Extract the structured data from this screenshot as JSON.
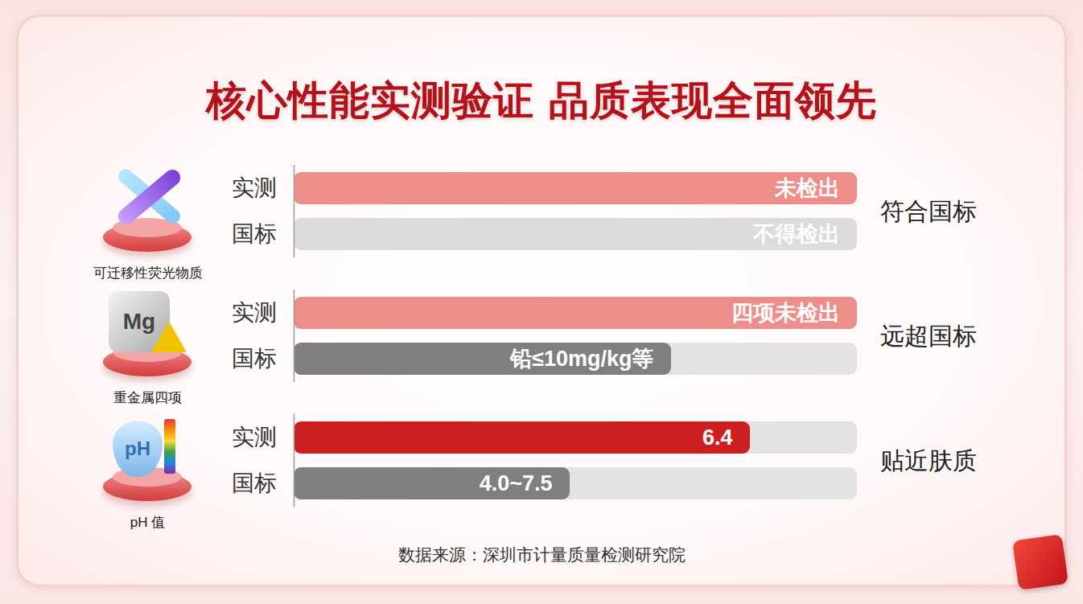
{
  "chart_data": {
    "type": "bar",
    "orientation": "horizontal",
    "title": "核心性能实测验证 品质表现全面领先",
    "source": "数据来源：深圳市计量质量检测研究院",
    "xlim": [
      0,
      100
    ],
    "tick_labels": "y",
    "groups": [
      {
        "name": "可迁移性荧光物质",
        "verdict": "符合国标",
        "rows": [
          {
            "category": "实测",
            "value": 100,
            "bar_text": "未检出",
            "color": "#ee8e8a"
          },
          {
            "category": "国标",
            "value": 100,
            "bar_text": "不得检出",
            "color": "#dcdcdc"
          }
        ]
      },
      {
        "name": "重金属四项",
        "verdict": "远超国标",
        "icon_text": "Mg",
        "rows": [
          {
            "category": "实测",
            "value": 100,
            "bar_text": "四项未检出",
            "color": "#ee8e8a"
          },
          {
            "category": "国标",
            "value": 67,
            "bar_text": "铅≤10mg/kg等",
            "color": "#7f7f7f"
          }
        ]
      },
      {
        "name": "pH 值",
        "verdict": "贴近肤质",
        "icon_text": "pH",
        "rows": [
          {
            "category": "实测",
            "value": 81,
            "bar_text": "6.4",
            "color": "#cc1f1f"
          },
          {
            "category": "国标",
            "value": 49,
            "bar_text": "4.0~7.5",
            "color": "#7f7f7f"
          }
        ]
      }
    ]
  }
}
